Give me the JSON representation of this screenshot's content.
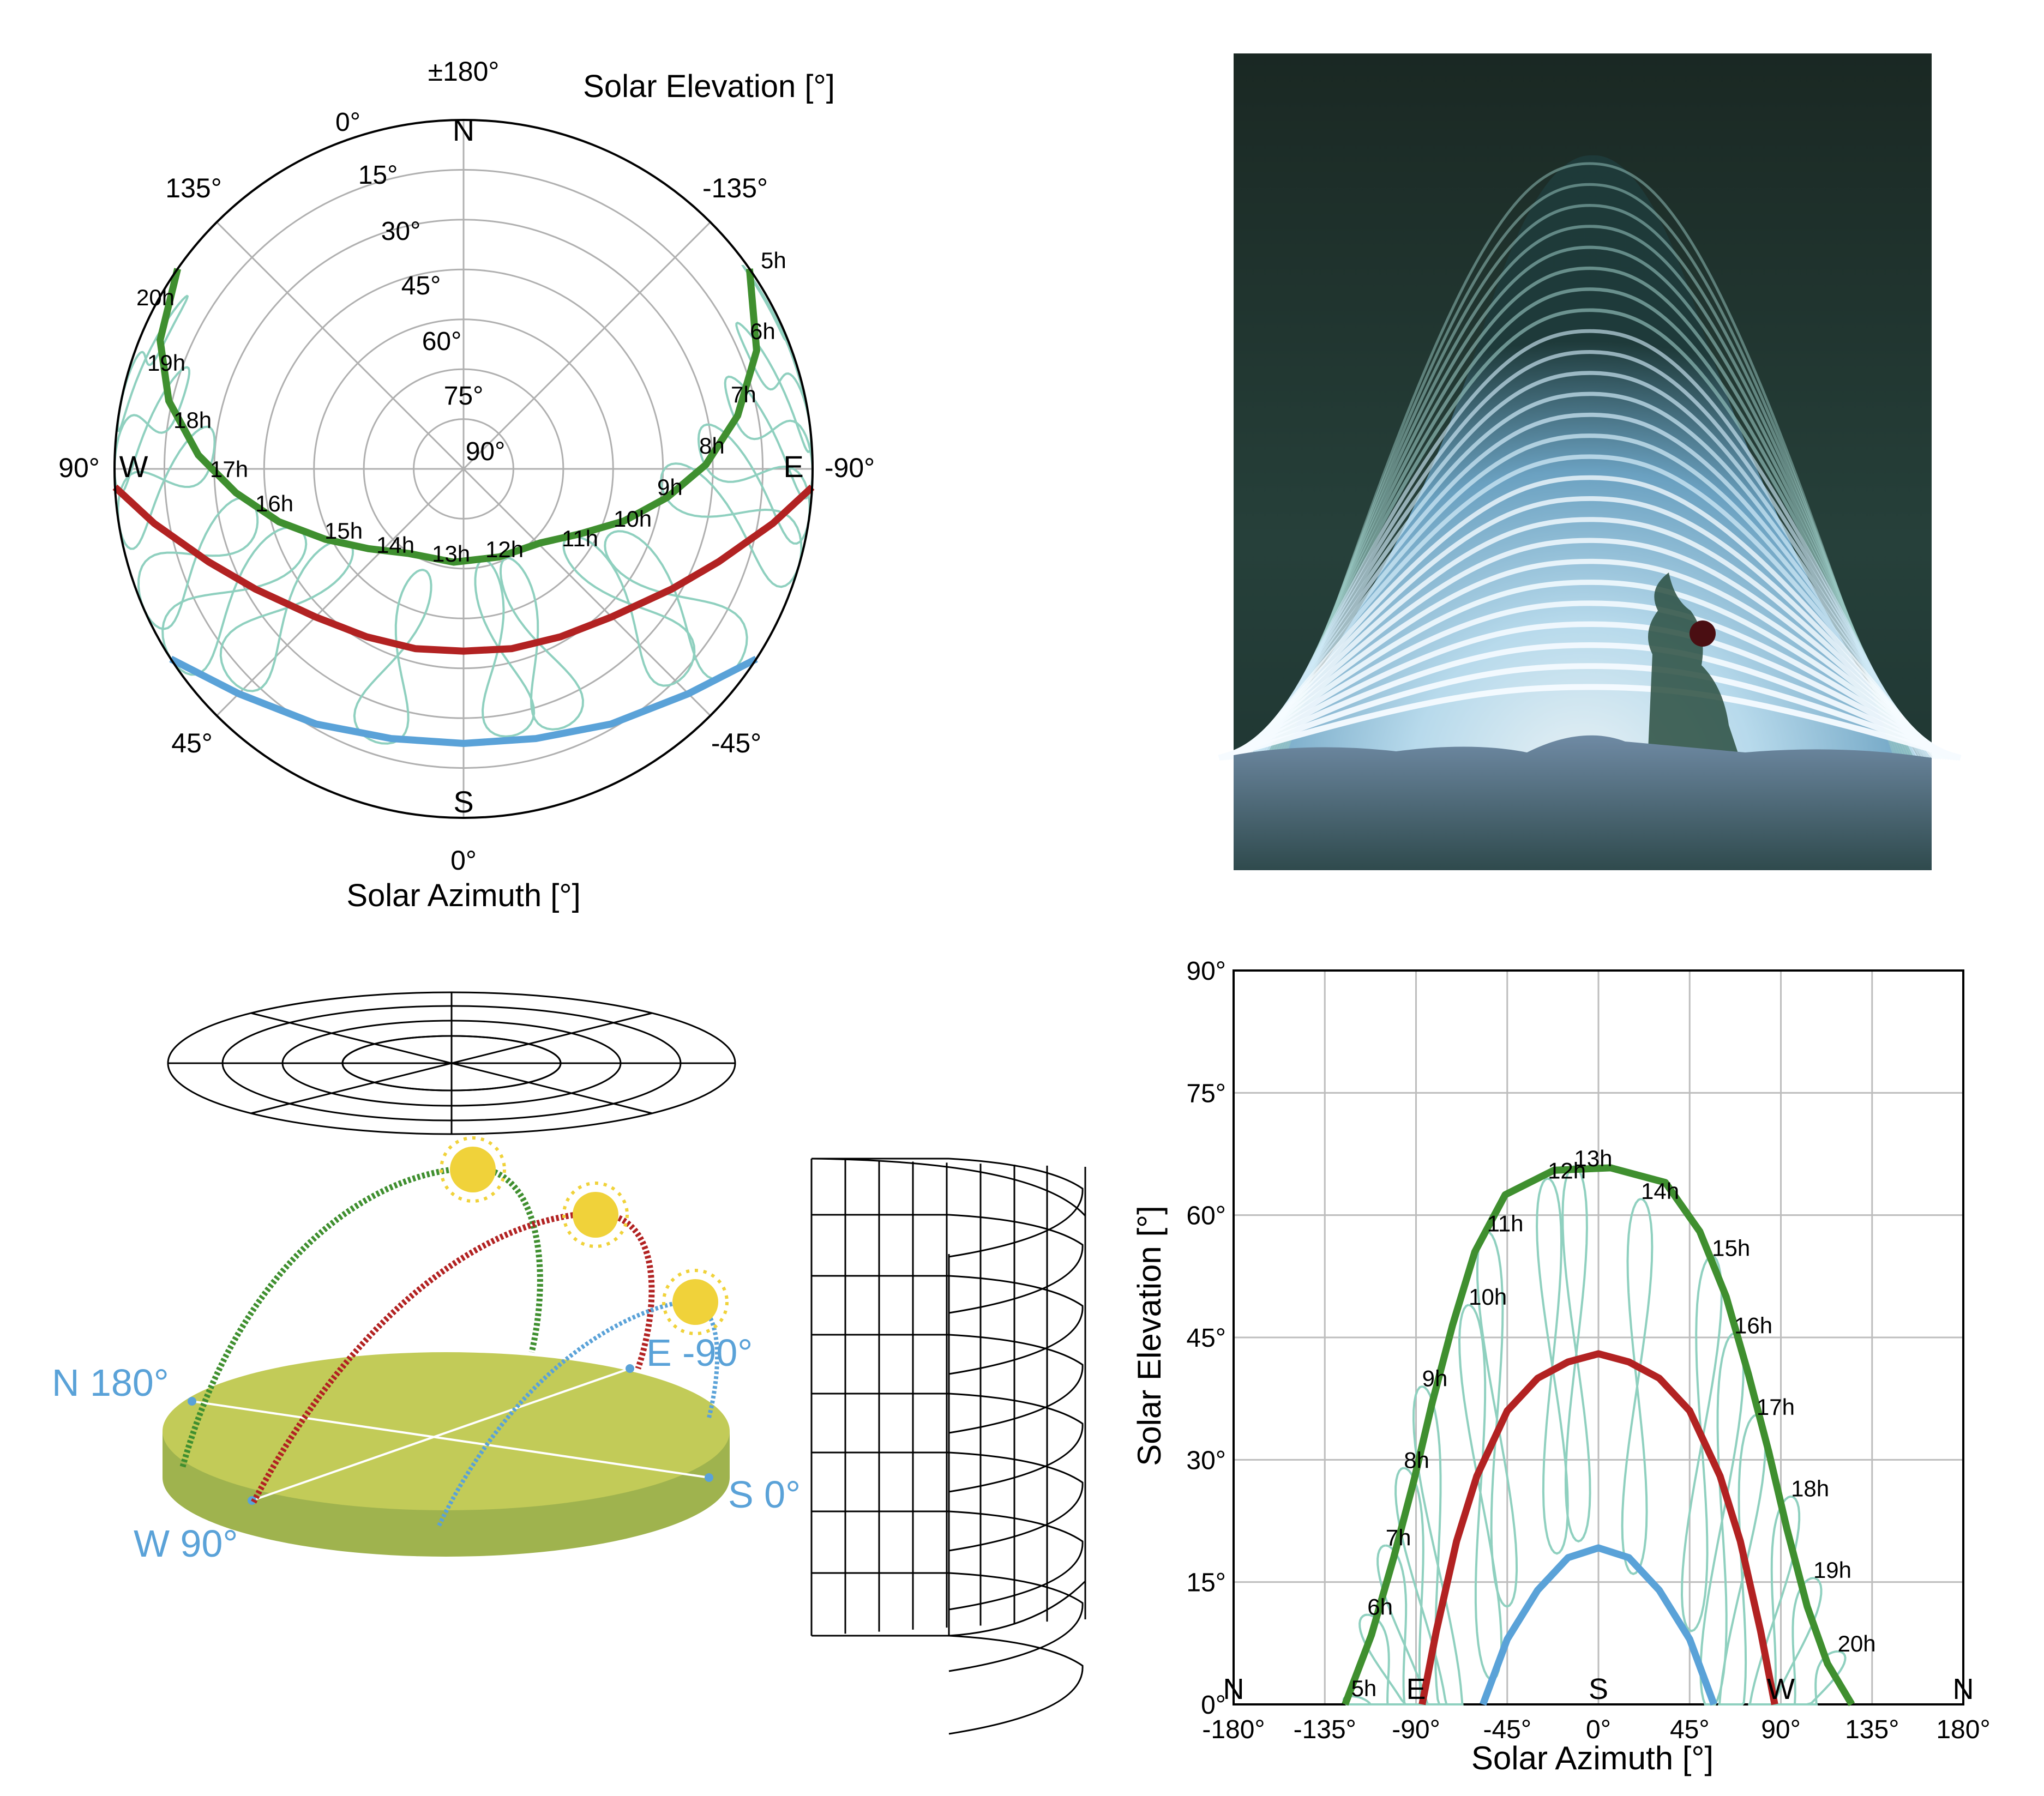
{
  "polar": {
    "top_label": "±180°",
    "title": "Solar Elevation [°]",
    "xlabel": "Solar Azimuth [°]",
    "ring_labels": [
      "0°",
      "15°",
      "30°",
      "45°",
      "60°",
      "75°",
      "90°"
    ],
    "azimuth_labels": [
      "135°",
      "-135°",
      "90°",
      "-90°",
      "45°",
      "-45°",
      "0°"
    ],
    "cardinals": [
      "N",
      "W",
      "E",
      "S"
    ],
    "hour_labels": [
      "5h",
      "6h",
      "7h",
      "8h",
      "9h",
      "10h",
      "11h",
      "12h",
      "13h",
      "14h",
      "15h",
      "16h",
      "17h",
      "18h",
      "19h",
      "20h"
    ]
  },
  "diagram3d": {
    "labels": [
      "N 180°",
      "E -90°",
      "W 90°",
      "S 0°"
    ]
  },
  "photo": {},
  "chart_data": {
    "type": "line",
    "xlabel": "Solar Azimuth [°]",
    "ylabel": "Solar Elevation [°]",
    "xlim": [
      -180,
      180
    ],
    "ylim": [
      0,
      90
    ],
    "x_ticks": [
      "-180°",
      "-135°",
      "-90°",
      "-45°",
      "0°",
      "45°",
      "90°",
      "135°",
      "180°"
    ],
    "y_ticks": [
      "0°",
      "15°",
      "30°",
      "45°",
      "60°",
      "75°",
      "90°"
    ],
    "compass": [
      "N",
      "E",
      "S",
      "W",
      "N"
    ],
    "grid": true,
    "colors": {
      "summer": "#3f8f2f",
      "equinox": "#b22222",
      "winter": "#5aa2d8",
      "analemma": "#8fd0bf"
    },
    "series": [
      {
        "x": [
          -125,
          -112,
          -101,
          -91,
          -82,
          -72,
          -61,
          -46,
          -22,
          6,
          33,
          50,
          63,
          74,
          84,
          93,
          103,
          113,
          125
        ],
        "y": [
          0,
          8.5,
          18,
          27.5,
          37,
          46.5,
          55.5,
          62.5,
          65.5,
          65.8,
          64,
          58,
          50,
          40.5,
          31,
          21.5,
          12,
          5,
          0
        ]
      },
      {
        "x": [
          -87,
          -80,
          -70,
          -60,
          -45,
          -30,
          -15,
          0,
          15,
          30,
          45,
          60,
          70,
          80,
          87
        ],
        "y": [
          0,
          9,
          20,
          28,
          36,
          40,
          42,
          43,
          42,
          40,
          36,
          28,
          20,
          9,
          0
        ]
      },
      {
        "x": [
          -57,
          -45,
          -30,
          -15,
          0,
          15,
          30,
          45,
          57
        ],
        "y": [
          0,
          8,
          14,
          18,
          19.2,
          18,
          14,
          8,
          0
        ]
      }
    ],
    "hour_labels": [
      {
        "text": "5h",
        "x": -122,
        "y": 1
      },
      {
        "text": "6h",
        "x": -114,
        "y": 11
      },
      {
        "text": "7h",
        "x": -105,
        "y": 19.5
      },
      {
        "text": "8h",
        "x": -96,
        "y": 29
      },
      {
        "text": "9h",
        "x": -87,
        "y": 39
      },
      {
        "text": "10h",
        "x": -64,
        "y": 49
      },
      {
        "text": "11h",
        "x": -55,
        "y": 58
      },
      {
        "text": "12h",
        "x": -25,
        "y": 64.5
      },
      {
        "text": "13h",
        "x": -12,
        "y": 66
      },
      {
        "text": "14h",
        "x": 21,
        "y": 62
      },
      {
        "text": "15h",
        "x": 56,
        "y": 55
      },
      {
        "text": "16h",
        "x": 67,
        "y": 45.5
      },
      {
        "text": "17h",
        "x": 78,
        "y": 35.5
      },
      {
        "text": "18h",
        "x": 95,
        "y": 25.5
      },
      {
        "text": "19h",
        "x": 106,
        "y": 15.5
      },
      {
        "text": "20h",
        "x": 118,
        "y": 6.5
      }
    ]
  }
}
